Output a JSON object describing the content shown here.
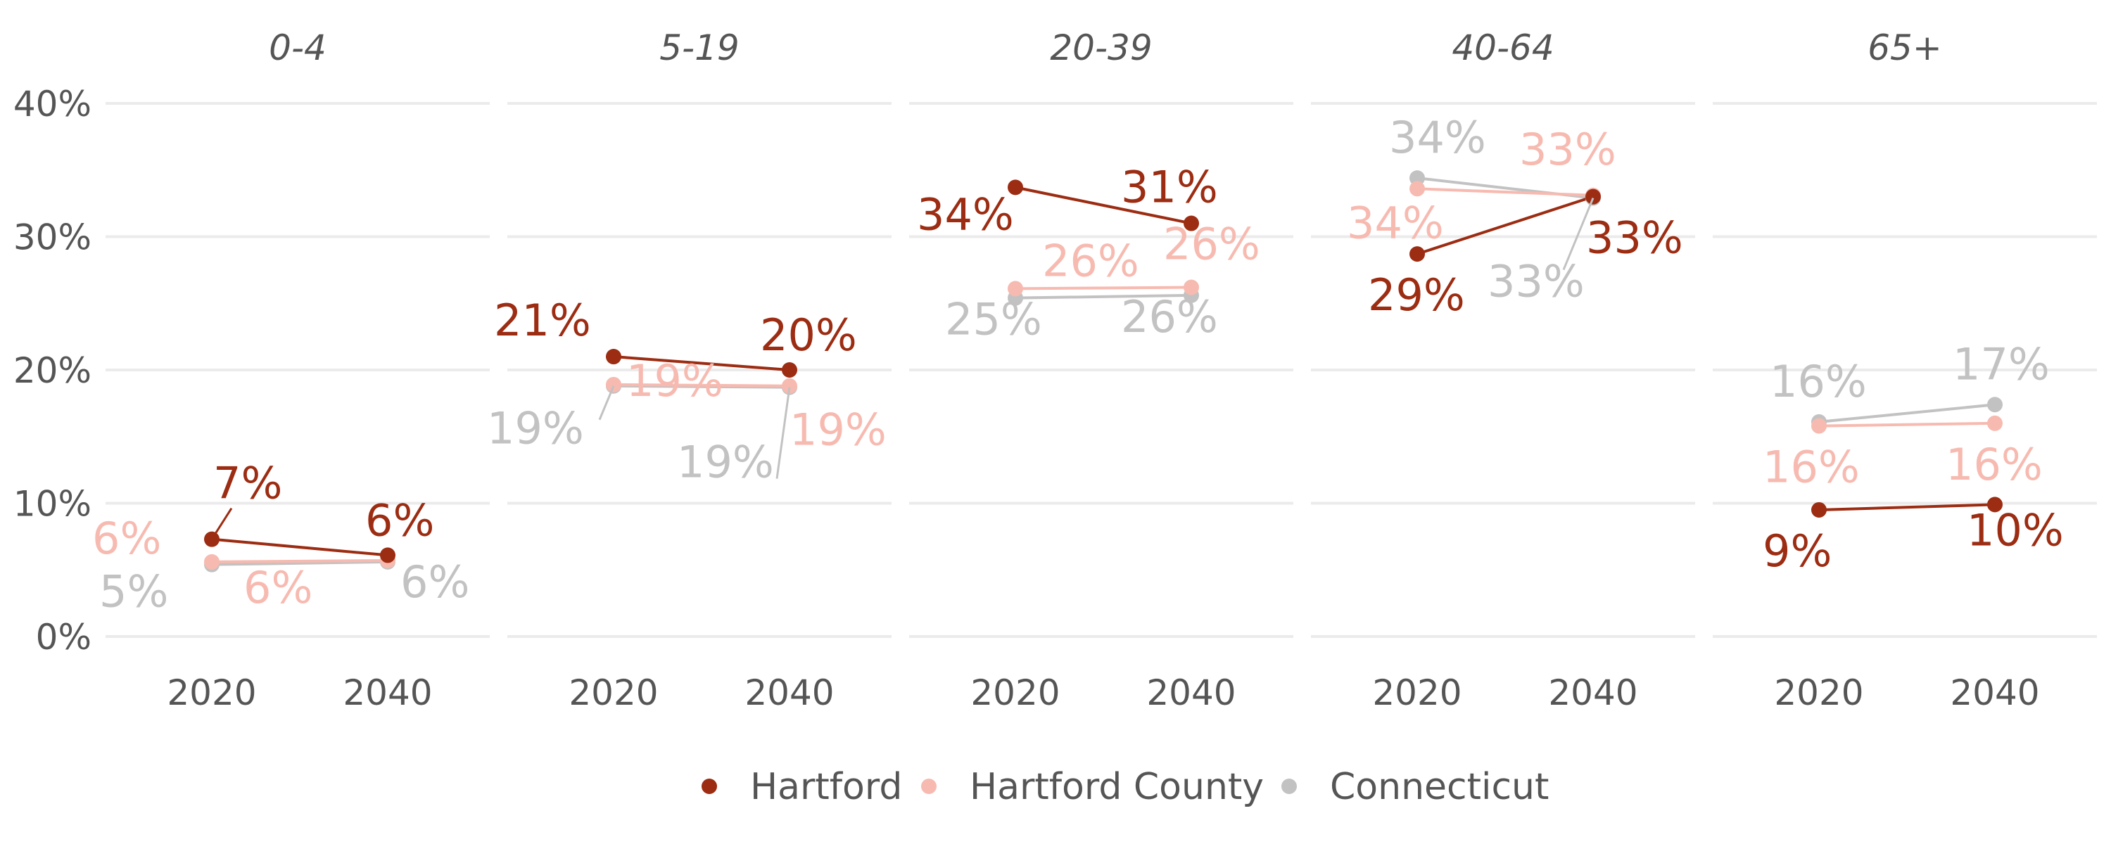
{
  "chart_data": {
    "type": "line",
    "x": [
      "2020",
      "2040"
    ],
    "y_ticks": [
      "0%",
      "10%",
      "20%",
      "30%",
      "40%"
    ],
    "ylim": [
      0,
      40
    ],
    "grid": true,
    "legend_position": "bottom",
    "series_colors": {
      "Hartford": "#9c2c12",
      "Hartford County": "#f7bab0",
      "Connecticut": "#c2c2c2"
    },
    "legend": [
      "Hartford",
      "Hartford County",
      "Connecticut"
    ],
    "facets": [
      {
        "title": "0-4",
        "series": [
          {
            "name": "Hartford",
            "values": [
              7.3,
              6.1
            ],
            "labels": [
              "7%",
              "6%"
            ]
          },
          {
            "name": "Hartford County",
            "values": [
              5.6,
              5.7
            ],
            "labels": [
              "6%",
              "6%"
            ]
          },
          {
            "name": "Connecticut",
            "values": [
              5.4,
              5.6
            ],
            "labels": [
              "5%",
              "6%"
            ]
          }
        ]
      },
      {
        "title": "5-19",
        "series": [
          {
            "name": "Hartford",
            "values": [
              21.0,
              20.0
            ],
            "labels": [
              "21%",
              "20%"
            ]
          },
          {
            "name": "Hartford County",
            "values": [
              18.9,
              18.8
            ],
            "labels": [
              "19%",
              "19%"
            ]
          },
          {
            "name": "Connecticut",
            "values": [
              18.8,
              18.7
            ],
            "labels": [
              "19%",
              "19%"
            ]
          }
        ]
      },
      {
        "title": "20-39",
        "series": [
          {
            "name": "Hartford",
            "values": [
              33.7,
              31.0
            ],
            "labels": [
              "34%",
              "31%"
            ]
          },
          {
            "name": "Hartford County",
            "values": [
              26.1,
              26.2
            ],
            "labels": [
              "26%",
              "26%"
            ]
          },
          {
            "name": "Connecticut",
            "values": [
              25.4,
              25.6
            ],
            "labels": [
              "25%",
              "26%"
            ]
          }
        ]
      },
      {
        "title": "40-64",
        "series": [
          {
            "name": "Hartford",
            "values": [
              28.7,
              33.0
            ],
            "labels": [
              "29%",
              "33%"
            ]
          },
          {
            "name": "Hartford County",
            "values": [
              33.6,
              33.1
            ],
            "labels": [
              "34%",
              "33%"
            ]
          },
          {
            "name": "Connecticut",
            "values": [
              34.4,
              32.9
            ],
            "labels": [
              "34%",
              "33%"
            ]
          }
        ]
      },
      {
        "title": "65+",
        "series": [
          {
            "name": "Hartford",
            "values": [
              9.5,
              9.9
            ],
            "labels": [
              "9%",
              "10%"
            ]
          },
          {
            "name": "Hartford County",
            "values": [
              15.8,
              16.0
            ],
            "labels": [
              "16%",
              "16%"
            ]
          },
          {
            "name": "Connecticut",
            "values": [
              16.1,
              17.4
            ],
            "labels": [
              "16%",
              "17%"
            ]
          }
        ]
      }
    ]
  }
}
